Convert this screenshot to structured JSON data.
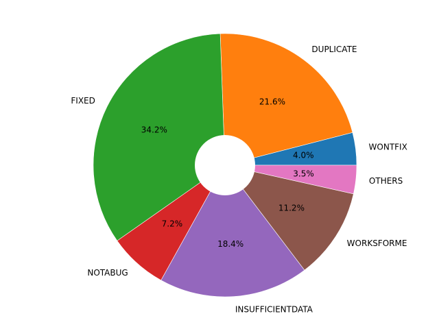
{
  "chart_data": {
    "type": "pie",
    "donut": true,
    "start_angle_deg": 0,
    "direction": "counterclockwise",
    "categories": [
      "WONTFIX",
      "DUPLICATE",
      "FIXED",
      "NOTABUG",
      "INSUFFICIENTDATA",
      "WORKSFORME",
      "OTHERS"
    ],
    "values": [
      4.0,
      21.6,
      34.2,
      7.2,
      18.4,
      11.2,
      3.5
    ],
    "value_labels": [
      "4.0%",
      "21.6%",
      "34.2%",
      "7.2%",
      "18.4%",
      "11.2%",
      "3.5%"
    ],
    "colors": [
      "#1f77b4",
      "#ff7f0e",
      "#2ca02c",
      "#d62728",
      "#9467bd",
      "#8c564b",
      "#e377c2"
    ],
    "title": "",
    "legend": "none"
  }
}
